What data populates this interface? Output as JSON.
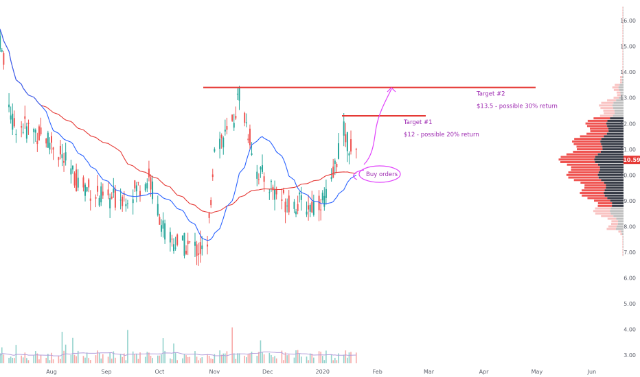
{
  "chart_data": {
    "type": "candlestick",
    "title": "",
    "xlabel": "",
    "ylabel": "",
    "colors": {
      "up": "#26a69a",
      "down": "#ef5350",
      "ma_fast": "#2962ff",
      "ma_slow": "#e53935",
      "annotation": "#9c27b0",
      "resistance": "#e53935",
      "price_tag": "#e53935",
      "vp_up": "#363a45",
      "vp_down": "#ef5350"
    },
    "price_axis": {
      "ticks": [
        "16.00",
        "15.00",
        "14.00",
        "13.00",
        "12.00",
        "11.00",
        "10.00",
        "9.00",
        "8.00",
        "7.00",
        "6.00",
        "5.00",
        "4.00",
        "3.00"
      ],
      "current_price": "10.59"
    },
    "time_axis": {
      "ticks": [
        "Aug",
        "Sep",
        "Oct",
        "Nov",
        "Dec",
        "2020",
        "Feb",
        "Mar",
        "Apr",
        "May",
        "Jun"
      ]
    },
    "price_range": [
      2.5,
      17.0
    ],
    "ohlc_anchors": [
      {
        "date": "2019-07-01",
        "close": 16.2
      },
      {
        "date": "2019-07-10",
        "close": 12.0
      },
      {
        "date": "2019-07-20",
        "close": 11.8
      },
      {
        "date": "2019-08-01",
        "close": 11.3
      },
      {
        "date": "2019-08-15",
        "close": 9.8
      },
      {
        "date": "2019-09-01",
        "close": 9.0
      },
      {
        "date": "2019-09-15",
        "close": 9.3
      },
      {
        "date": "2019-09-25",
        "close": 9.9
      },
      {
        "date": "2019-10-05",
        "close": 7.5
      },
      {
        "date": "2019-10-20",
        "close": 7.2
      },
      {
        "date": "2019-10-28",
        "close": 7.0
      },
      {
        "date": "2019-11-01",
        "close": 11.3
      },
      {
        "date": "2019-11-10",
        "close": 11.6
      },
      {
        "date": "2019-11-15",
        "close": 13.2
      },
      {
        "date": "2019-11-25",
        "close": 10.2
      },
      {
        "date": "2019-12-10",
        "close": 9.0
      },
      {
        "date": "2019-12-25",
        "close": 8.8
      },
      {
        "date": "2020-01-05",
        "close": 9.2
      },
      {
        "date": "2020-01-12",
        "close": 11.8
      },
      {
        "date": "2020-01-20",
        "close": 10.6
      }
    ],
    "series": [
      {
        "values_from": "ohlc_anchors"
      },
      {
        "values_from": "ohlc_anchors"
      },
      {
        "values_from": "ohlc_anchors"
      },
      {
        "values_from": "ohlc_anchors"
      }
    ],
    "annotations": {
      "target1": {
        "title": "Target #1",
        "detail": "$12 - possible 20% return",
        "level": 12.3
      },
      "target2": {
        "title": "Target #2",
        "detail": "$13.5 - possible 30% return",
        "level": 13.4
      },
      "buy_orders": "Buy orders"
    }
  }
}
